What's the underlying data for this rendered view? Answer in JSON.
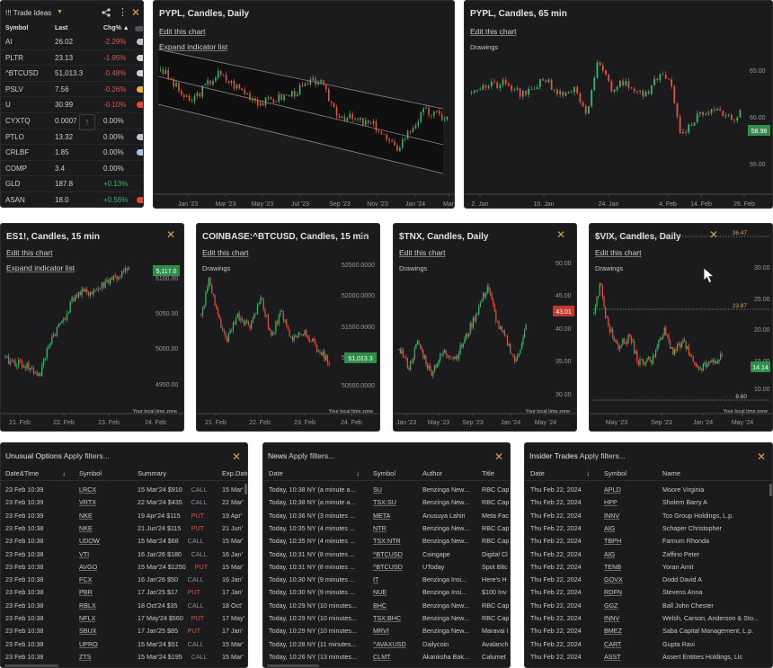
{
  "colors": {
    "panel_bg": "#1b1b1d",
    "up": "#3bb56a",
    "down": "#e0553f",
    "accent": "#d9a441"
  },
  "watchlist": {
    "title": "!!! Trade Ideas",
    "columns": {
      "symbol": "Symbol",
      "last": "Last",
      "chg": "Chg% ▲"
    },
    "rows": [
      {
        "symbol": "AI",
        "last": "26.02",
        "chg": "-2.29%",
        "dir": "neg",
        "pill": "#c0c4cc"
      },
      {
        "symbol": "PLTR",
        "last": "23.13",
        "chg": "-1.95%",
        "dir": "neg",
        "pill": "#d0d2d8"
      },
      {
        "symbol": "^BTCUSD",
        "last": "51,013.3",
        "chg": "-0.48%",
        "dir": "neg",
        "pill": "#d0d2d8"
      },
      {
        "symbol": "PSLV",
        "last": "7.56",
        "chg": "-0.26%",
        "dir": "neg",
        "pill": "#e8b04a"
      },
      {
        "symbol": "U",
        "last": "30.99",
        "chg": "-0.10%",
        "dir": "neg",
        "pill": "#d94a3a"
      },
      {
        "symbol": "CYXTQ",
        "last": "0.0007",
        "chg": "0.00%",
        "dir": "neu",
        "pill": ""
      },
      {
        "symbol": "PTLO",
        "last": "13.32",
        "chg": "0.00%",
        "dir": "neu",
        "pill": "#c0c4cc"
      },
      {
        "symbol": "CRLBF",
        "last": "1.85",
        "chg": "0.00%",
        "dir": "neu",
        "pill": "#a9c8e8"
      },
      {
        "symbol": "COMP",
        "last": "3.4",
        "chg": "0.00%",
        "dir": "neu",
        "pill": ""
      },
      {
        "symbol": "GLD",
        "last": "187.8",
        "chg": "+0.13%",
        "dir": "pos",
        "pill": ""
      },
      {
        "symbol": "ASAN",
        "last": "18.0",
        "chg": "+0.56%",
        "dir": "pos",
        "pill": "#d94a3a"
      }
    ]
  },
  "charts": {
    "pypl_daily": {
      "title": "PYPL, Candles, Daily",
      "edit": "Edit this chart",
      "expand": "Expand indicator list",
      "x_ticks": [
        "Jan '23",
        "Mar '23",
        "May '23",
        "Jul '23",
        "Sep '23",
        "Nov '23",
        "Jan '24",
        "Mar"
      ]
    },
    "pypl_65": {
      "title": "PYPL, Candles, 65 min",
      "edit": "Edit this chart",
      "drawings": "Drawings",
      "y_ticks": [
        "65.00",
        "60.00",
        "55.00"
      ],
      "price_tag": "58.98",
      "x_ticks": [
        "2. Jan",
        "10. Jan",
        "24. Jan",
        "4. Feb",
        "14. Feb",
        "26. Feb"
      ]
    },
    "es1": {
      "title": "ES1!, Candles, 15 min",
      "edit": "Edit this chart",
      "expand": "Expand indicator list",
      "y_ticks": [
        "5100.00",
        "5050.00",
        "5000.00",
        "4950.00"
      ],
      "price_tag": "5,117.0",
      "x_ticks": [
        "21. Feb",
        "22. Feb",
        "23. Feb",
        "24. Feb"
      ],
      "tz": "Your local time zone"
    },
    "btc": {
      "title": "COINBASE:^BTCUSD, Candles, 15 min",
      "edit": "Edit this chart",
      "drawings": "Drawings",
      "y_ticks": [
        "52500.0000",
        "52000.0000",
        "51500.0000",
        "51000.0000",
        "50500.0000"
      ],
      "price_tag": "51,013.3",
      "x_ticks": [
        "21. Feb",
        "22. Feb",
        "23. Feb",
        "24. Feb"
      ],
      "tz": "Your local time zone"
    },
    "tnx": {
      "title": "$TNX, Candles, Daily",
      "edit": "Edit this chart",
      "drawings": "Drawings",
      "y_ticks": [
        "50.00",
        "45.00",
        "40.00",
        "35.00",
        "30.00"
      ],
      "price_tag": "43.01",
      "x_ticks": [
        "Jan '23",
        "May '23",
        "Sep '23",
        "Jan '24",
        "May '24"
      ],
      "tz": "Your local time zone"
    },
    "vix": {
      "title": "$VIX, Candles, Daily",
      "edit": "Edit this chart",
      "drawings": "Drawings",
      "y_ticks": [
        "30.00",
        "25.00",
        "20.00",
        "15.00",
        "10.00"
      ],
      "price_tag": "14.14",
      "levels": [
        "36.47",
        "23.87",
        "8.60"
      ],
      "x_ticks": [
        "May '23",
        "Sep '23",
        "Jan '24",
        "May '24"
      ],
      "tz": "Your local time zone"
    }
  },
  "options": {
    "title": "Unusual Options",
    "filter": "Apply filters...",
    "columns": [
      "Date&Time",
      "Symbol",
      "Summary",
      "Exp.Date"
    ],
    "rows": [
      [
        "23 Feb 10:39",
        "LRCX",
        "15 Mar'24 $910",
        "CALL",
        "15 Mar'"
      ],
      [
        "23 Feb 10:39",
        "VRTX",
        "22 Mar'24 $435",
        "CALL",
        "22 Mar'"
      ],
      [
        "23 Feb 10:39",
        "NKE",
        "19 Apr'24 $115",
        "PUT",
        "19 Apr'"
      ],
      [
        "23 Feb 10:38",
        "NKE",
        "21 Jun'24 $115",
        "PUT",
        "21 Jun'"
      ],
      [
        "23 Feb 10:38",
        "UDOW",
        "15 Mar'24 $68",
        "CALL",
        "15 Mar'"
      ],
      [
        "23 Feb 10:38",
        "VTI",
        "16 Jan'26 $180",
        "CALL",
        "16 Jan'"
      ],
      [
        "23 Feb 10:38",
        "AVGO",
        "15 Mar'24 $1250",
        "PUT",
        "15 Mar'"
      ],
      [
        "23 Feb 10:38",
        "FCX",
        "16 Jan'26 $50",
        "CALL",
        "16 Jan'"
      ],
      [
        "23 Feb 10:38",
        "PBR",
        "17 Jan'25 $17",
        "PUT",
        "17 Jan'"
      ],
      [
        "23 Feb 10:38",
        "RBLX",
        "18 Oct'24 $35",
        "CALL",
        "18 Oct'"
      ],
      [
        "23 Feb 10:38",
        "NFLX",
        "17 May'24 $560",
        "PUT",
        "17 May'"
      ],
      [
        "23 Feb 10:38",
        "SBUX",
        "17 Jan'25 $85",
        "PUT",
        "17 Jan'"
      ],
      [
        "23 Feb 10:38",
        "UPRO",
        "15 Mar'24 $51",
        "CALL",
        "15 Mar'"
      ],
      [
        "23 Feb 10:38",
        "ZTS",
        "15 Mar'24 $195",
        "CALL",
        "15 Mar'"
      ]
    ]
  },
  "news": {
    "title": "News",
    "filter": "Apply filters...",
    "columns": [
      "Date",
      "Symbol",
      "Author",
      "Title"
    ],
    "rows": [
      [
        "Today, 10:38 NY (a minute a...",
        "SU",
        "Benzinga New...",
        "RBC Cap"
      ],
      [
        "Today, 10:38 NY (a minute a...",
        "TSX:SU",
        "Benzinga New...",
        "RBC Cap"
      ],
      [
        "Today, 10:36 NY (3 minutes ...",
        "META",
        "Anusuya Lahiri",
        "Meta Fac"
      ],
      [
        "Today, 10:35 NY (4 minutes ...",
        "NTR",
        "Benzinga New...",
        "RBC Cap"
      ],
      [
        "Today, 10:35 NY (4 minutes ...",
        "TSX:NTR",
        "Benzinga New...",
        "RBC Cap"
      ],
      [
        "Today, 10:31 NY (8 minutes ...",
        "^BTCUSD",
        "Coingape",
        "Digital Cl"
      ],
      [
        "Today, 10:31 NY (8 minutes ...",
        "^BTCUSD",
        "UToday",
        "Spot Bitc"
      ],
      [
        "Today, 10:30 NY (9 minutes ...",
        "IT",
        "Benzinga Insi...",
        "Here's H"
      ],
      [
        "Today, 10:30 NY (9 minutes ...",
        "NUE",
        "Benzinga Insi...",
        "$100 Inv"
      ],
      [
        "Today, 10:29 NY (10 minutes...",
        "BHC",
        "Benzinga New...",
        "RBC Cap"
      ],
      [
        "Today, 10:29 NY (10 minutes...",
        "TSX:BHC",
        "Benzinga New...",
        "RBC Cap"
      ],
      [
        "Today, 10:29 NY (10 minutes...",
        "MRVI",
        "Benzinga New...",
        "Maravai I"
      ],
      [
        "Today, 10:28 NY (11 minutes...",
        "^AVAXUSD",
        "Dailycoin",
        "Avalanch"
      ],
      [
        "Today, 10:26 NY (13 minutes...",
        "CLMT",
        "Akanksha Bak...",
        "Calumet"
      ]
    ]
  },
  "insider": {
    "title": "Insider Trades",
    "filter": "Apply filters...",
    "columns": [
      "Date",
      "Symbol",
      "Name"
    ],
    "rows": [
      [
        "Thu Feb 22, 2024",
        "APLD",
        "Moore Virginia"
      ],
      [
        "Thu Feb 22, 2024",
        "HPP",
        "Sholem Barry A"
      ],
      [
        "Thu Feb 22, 2024",
        "INNV",
        "Tco Group Holdings, L.p."
      ],
      [
        "Thu Feb 22, 2024",
        "AIG",
        "Schaper Christopher"
      ],
      [
        "Thu Feb 22, 2024",
        "TBPH",
        "Farnum Rhonda"
      ],
      [
        "Thu Feb 22, 2024",
        "AIG",
        "Zaffino Peter"
      ],
      [
        "Thu Feb 22, 2024",
        "TENB",
        "Yoran Amit"
      ],
      [
        "Thu Feb 22, 2024",
        "GOVX",
        "Dodd David A"
      ],
      [
        "Thu Feb 22, 2024",
        "RDFN",
        "Stevens Anna"
      ],
      [
        "Thu Feb 22, 2024",
        "GGZ",
        "Ball John Chester"
      ],
      [
        "Thu Feb 22, 2024",
        "INNV",
        "Welsh, Carson, Anderson & Sto..."
      ],
      [
        "Thu Feb 22, 2024",
        "BMEZ",
        "Saba Capital Management, L.p."
      ],
      [
        "Thu Feb 22, 2024",
        "CART",
        "Gupta Ravi"
      ],
      [
        "Thu Feb 22, 2024",
        "ASST",
        "Assert Entities Holdings, Llc"
      ]
    ]
  }
}
